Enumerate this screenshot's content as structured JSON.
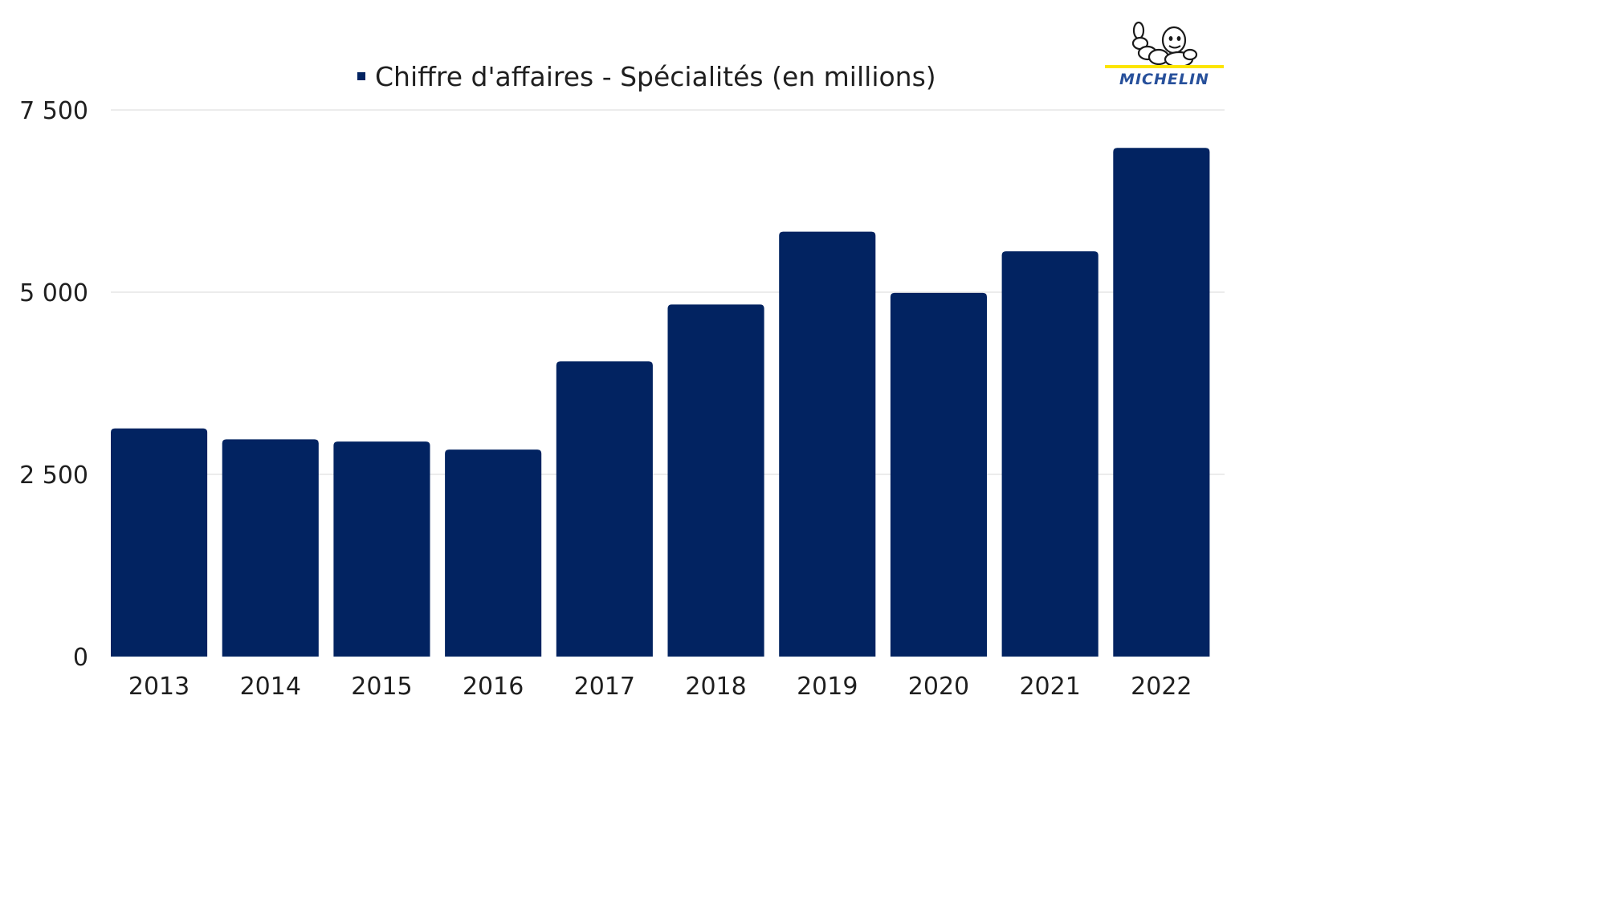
{
  "colors": {
    "bar": "#022361",
    "grid": "#d9d9d9",
    "text": "#1f1f1f",
    "logo_blue": "#27509b",
    "logo_yellow": "#fce500"
  },
  "logo": {
    "text": "MICHELIN",
    "icon": "michelin-man-icon"
  },
  "chart_data": {
    "type": "bar",
    "categories": [
      "2013",
      "2014",
      "2015",
      "2016",
      "2017",
      "2018",
      "2019",
      "2020",
      "2021",
      "2022"
    ],
    "series": [
      {
        "name": "Chiffre d'affaires - Spécialités (en millions)",
        "values": [
          3130,
          2980,
          2950,
          2840,
          4050,
          4830,
          5830,
          4990,
          5560,
          6980
        ]
      }
    ],
    "ylim": [
      0,
      7500
    ],
    "yticks": [
      0,
      2500,
      5000,
      7500
    ],
    "ytick_labels": [
      "0",
      "2 500",
      "5 000",
      "7 500"
    ],
    "grid": true,
    "legend": "top-center"
  }
}
